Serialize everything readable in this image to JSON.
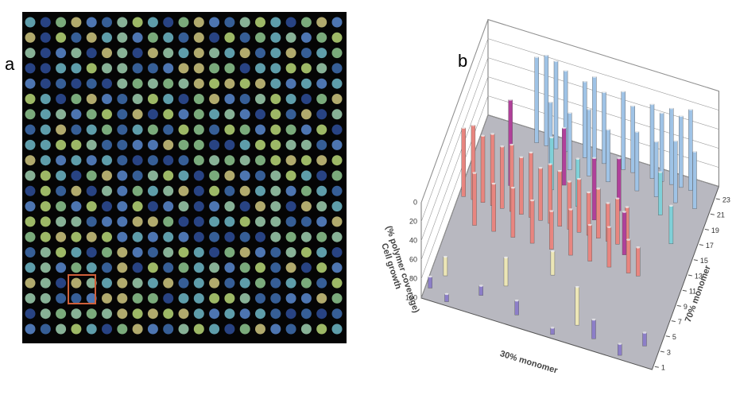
{
  "panels": {
    "a": {
      "label": "a"
    },
    "b": {
      "label": "b"
    }
  },
  "chart_data": {
    "type": "bar3d",
    "zlabel": [
      "Cell growth",
      "(% polymer coverage)"
    ],
    "xlabel": "30% monomer",
    "ylabel": "70% monomer",
    "zlim": [
      100,
      0
    ],
    "zticks": [
      0,
      20,
      40,
      60,
      80,
      100
    ],
    "xlim": [
      0.5,
      24.5
    ],
    "ylim": [
      0.5,
      24.5
    ],
    "yticks": [
      1,
      3,
      5,
      7,
      9,
      11,
      13,
      15,
      17,
      19,
      21,
      23
    ],
    "series": [
      {
        "color": "#e8857f",
        "x": [
          1,
          2,
          3,
          4,
          5,
          6,
          7,
          8,
          9,
          10,
          11,
          12,
          13,
          14,
          15,
          16,
          17,
          18,
          3,
          5,
          7,
          9,
          11,
          13,
          15,
          17,
          19,
          20
        ],
        "y": [
          14,
          14,
          14,
          14,
          14,
          14,
          14,
          14,
          14,
          14,
          14,
          14,
          14,
          14,
          14,
          14,
          14,
          14,
          11,
          11,
          11,
          11,
          11,
          11,
          11,
          11,
          11,
          11
        ],
        "values": [
          28,
          22,
          30,
          25,
          35,
          30,
          40,
          32,
          45,
          38,
          42,
          50,
          44,
          55,
          48,
          60,
          52,
          58,
          45,
          50,
          48,
          55,
          60,
          52,
          62,
          58,
          65,
          70
        ]
      },
      {
        "color": "#9fc3e6",
        "x": [
          6,
          7,
          8,
          9,
          11,
          12,
          13,
          15,
          16,
          18,
          19,
          20,
          21,
          22,
          8,
          10,
          12,
          14,
          17,
          19,
          21,
          23
        ],
        "y": [
          23,
          23,
          23,
          23,
          23,
          23,
          23,
          23,
          23,
          23,
          23,
          23,
          23,
          23,
          21,
          21,
          21,
          21,
          21,
          21,
          21,
          21
        ],
        "values": [
          10,
          5,
          8,
          15,
          20,
          12,
          25,
          18,
          30,
          22,
          28,
          20,
          25,
          15,
          35,
          40,
          30,
          45,
          38,
          42,
          35,
          40
        ]
      },
      {
        "color": "#b0409a",
        "x": [
          5,
          10,
          14,
          16,
          18
        ],
        "y": [
          17,
          19,
          16,
          18,
          13
        ],
        "values": [
          10,
          40,
          35,
          45,
          55
        ]
      },
      {
        "color": "#7fd0d8",
        "x": [
          9,
          12,
          20,
          22
        ],
        "y": [
          18,
          17,
          19,
          16
        ],
        "values": [
          45,
          50,
          55,
          60
        ]
      },
      {
        "color": "#8c7ec8",
        "x": [
          1,
          3,
          6,
          10,
          14,
          18,
          21,
          23
        ],
        "y": [
          2,
          1,
          3,
          2,
          1,
          2,
          1,
          3
        ],
        "values": [
          88,
          92,
          90,
          85,
          93,
          80,
          88,
          86
        ]
      },
      {
        "color": "#ece6b6",
        "x": [
          2,
          8,
          16,
          12
        ],
        "y": [
          4,
          5,
          3,
          8
        ],
        "values": [
          80,
          70,
          60,
          75
        ]
      }
    ]
  }
}
